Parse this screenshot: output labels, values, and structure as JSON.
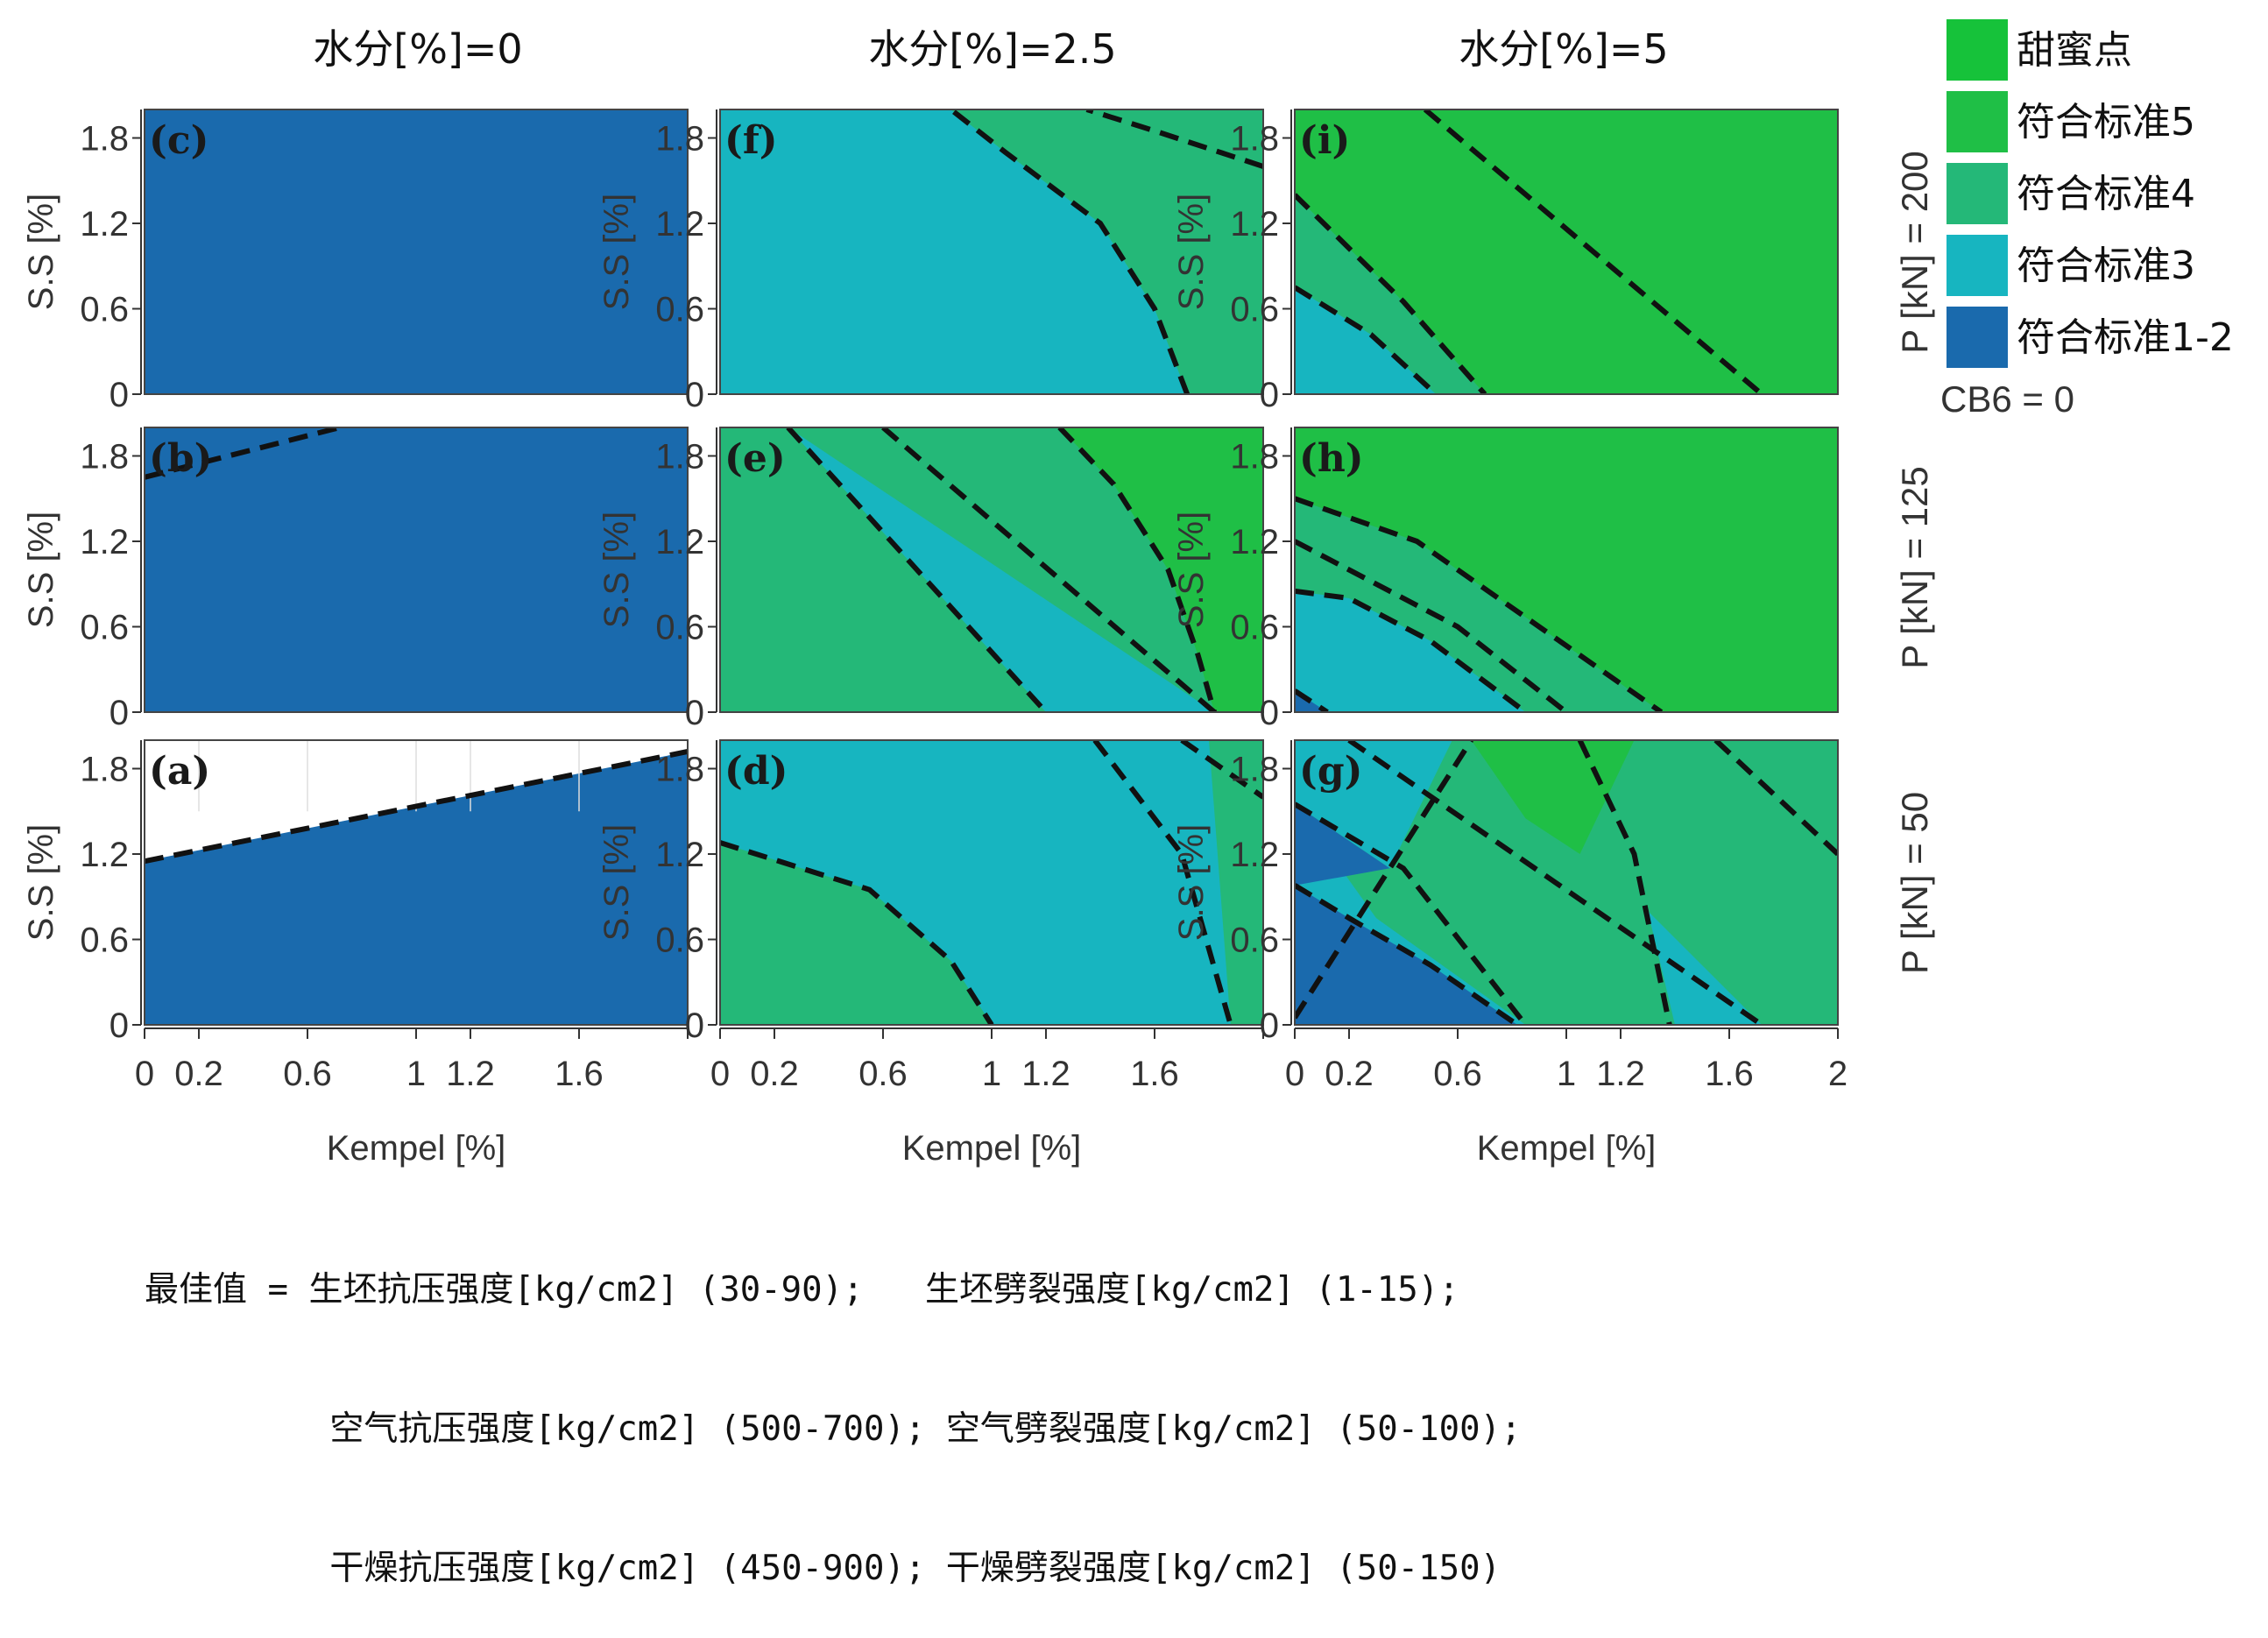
{
  "chart_data": {
    "type": "heatmap",
    "column_headers": [
      "水分[%]=0",
      "水分[%]=2.5",
      "水分[%]=5"
    ],
    "row_headers": [
      "P [kN] = 200",
      "P [kN] = 125",
      "P [kN] = 50"
    ],
    "xlabel": "Kempel [%]",
    "ylabel": "S.S [%]",
    "xlim": [
      0,
      2
    ],
    "ylim": [
      0,
      2
    ],
    "x_ticks": [
      "0",
      "0.2",
      "0.6",
      "1",
      "1.2",
      "1.6",
      "2"
    ],
    "x_tick_values": [
      0,
      0.2,
      0.6,
      1,
      1.2,
      1.6,
      2
    ],
    "y_ticks": [
      "0",
      "0.6",
      "1.2",
      "1.8"
    ],
    "y_tick_values": [
      0,
      0.6,
      1.2,
      1.8
    ],
    "legend": {
      "placement": "right",
      "items": [
        {
          "label": "甜蜜点",
          "color": "#16c23a"
        },
        {
          "label": "符合标准5",
          "color": "#1fbf46"
        },
        {
          "label": "符合标准4",
          "color": "#24b878"
        },
        {
          "label": "符合标准3",
          "color": "#17b5c0"
        },
        {
          "label": "符合标准1-2",
          "color": "#1a6aad"
        }
      ],
      "note": "CB6 = 0"
    },
    "contour_style": "black dashed boundaries",
    "panels": [
      {
        "label": "(c)",
        "row": 0,
        "col": 0,
        "x_ticks_shown": [
          "0",
          "0.2",
          "0.6",
          "1",
          "1.2",
          "1.6"
        ],
        "background": "#1a6aad",
        "regions": [],
        "boundaries": []
      },
      {
        "label": "(f)",
        "row": 0,
        "col": 1,
        "x_ticks_shown": [
          "0",
          "0.2",
          "0.6",
          "1",
          "1.2",
          "1.6"
        ],
        "background": "#24b878",
        "regions": [
          {
            "color": "#17b5c0",
            "points": [
              [
                0,
                0
              ],
              [
                1.72,
                0
              ],
              [
                1.6,
                0.6
              ],
              [
                1.4,
                1.2
              ],
              [
                1.05,
                1.7
              ],
              [
                0.85,
                2
              ],
              [
                0,
                2
              ]
            ]
          }
        ],
        "boundaries": [
          [
            [
              1.72,
              0
            ],
            [
              1.6,
              0.6
            ],
            [
              1.4,
              1.2
            ],
            [
              1.05,
              1.7
            ],
            [
              0.85,
              2
            ]
          ],
          [
            [
              2,
              1.6
            ],
            [
              1.6,
              1.85
            ],
            [
              1.35,
              2
            ]
          ]
        ]
      },
      {
        "label": "(i)",
        "row": 0,
        "col": 2,
        "x_ticks_shown": [
          "0",
          "0.2",
          "0.6",
          "1",
          "1.2",
          "1.6",
          "2"
        ],
        "background": "#1fbf46",
        "regions": [
          {
            "color": "#24b878",
            "points": [
              [
                0,
                0
              ],
              [
                0.7,
                0
              ],
              [
                0.4,
                0.65
              ],
              [
                0,
                1.4
              ]
            ]
          },
          {
            "color": "#17b5c0",
            "points": [
              [
                0,
                0
              ],
              [
                0.52,
                0
              ],
              [
                0.28,
                0.42
              ],
              [
                0,
                0.75
              ]
            ]
          }
        ],
        "boundaries": [
          [
            [
              0.48,
              2
            ],
            [
              1.72,
              0
            ]
          ],
          [
            [
              0,
              1.4
            ],
            [
              0.4,
              0.65
            ],
            [
              0.7,
              0
            ]
          ],
          [
            [
              0,
              0.75
            ],
            [
              0.28,
              0.42
            ],
            [
              0.52,
              0
            ]
          ]
        ]
      },
      {
        "label": "(b)",
        "row": 1,
        "col": 0,
        "x_ticks_shown": [
          "0",
          "0.2",
          "0.6",
          "1",
          "1.2",
          "1.6"
        ],
        "background": "#1a6aad",
        "regions": [],
        "boundaries": [
          [
            [
              0,
              1.65
            ],
            [
              0.72,
              2
            ]
          ]
        ]
      },
      {
        "label": "(e)",
        "row": 1,
        "col": 1,
        "x_ticks_shown": [
          "0",
          "0.2",
          "0.6",
          "1",
          "1.2",
          "1.6"
        ],
        "background": "#1fbf46",
        "regions": [
          {
            "color": "#24b878",
            "points": [
              [
                0,
                0
              ],
              [
                1.82,
                0
              ],
              [
                1.76,
                0.4
              ],
              [
                1.65,
                1
              ],
              [
                1.45,
                1.6
              ],
              [
                1.25,
                2
              ],
              [
                0,
                2
              ]
            ]
          },
          {
            "color": "#17b5c0",
            "points": [
              [
                0.25,
                2
              ],
              [
                1.82,
                0
              ],
              [
                1.2,
                0
              ]
            ]
          }
        ],
        "boundaries": [
          [
            [
              0.25,
              2
            ],
            [
              1.2,
              0
            ]
          ],
          [
            [
              0.6,
              2
            ],
            [
              1.82,
              0
            ]
          ],
          [
            [
              1.25,
              2
            ],
            [
              1.45,
              1.6
            ],
            [
              1.65,
              1
            ],
            [
              1.76,
              0.4
            ],
            [
              1.82,
              0
            ]
          ]
        ]
      },
      {
        "label": "(h)",
        "row": 1,
        "col": 2,
        "x_ticks_shown": [
          "0",
          "0.2",
          "0.6",
          "1",
          "1.2",
          "1.6",
          "2"
        ],
        "background": "#1fbf46",
        "regions": [
          {
            "color": "#24b878",
            "points": [
              [
                0,
                0
              ],
              [
                1.35,
                0
              ],
              [
                0.9,
                0.6
              ],
              [
                0.45,
                1.2
              ],
              [
                0,
                1.5
              ]
            ]
          },
          {
            "color": "#17b5c0",
            "points": [
              [
                0,
                0
              ],
              [
                0.85,
                0
              ],
              [
                0.5,
                0.5
              ],
              [
                0.2,
                0.8
              ],
              [
                0,
                0.85
              ]
            ]
          },
          {
            "color": "#1a6aad",
            "points": [
              [
                0,
                0
              ],
              [
                0.12,
                0
              ],
              [
                0,
                0.15
              ]
            ]
          }
        ],
        "boundaries": [
          [
            [
              0,
              1.5
            ],
            [
              0.45,
              1.2
            ],
            [
              0.9,
              0.6
            ],
            [
              1.35,
              0
            ]
          ],
          [
            [
              0,
              1.2
            ],
            [
              0.6,
              0.6
            ],
            [
              1.0,
              0
            ]
          ],
          [
            [
              0,
              0.85
            ],
            [
              0.2,
              0.8
            ],
            [
              0.5,
              0.5
            ],
            [
              0.85,
              0
            ]
          ],
          [
            [
              0,
              0.15
            ],
            [
              0.12,
              0
            ]
          ]
        ]
      },
      {
        "label": "(a)",
        "row": 2,
        "col": 0,
        "x_ticks_shown": [
          "0",
          "0.2",
          "0.6",
          "1",
          "1.2",
          "1.6"
        ],
        "background": "#1a6aad",
        "regions": [
          {
            "color": "#ffffff",
            "points": [
              [
                0,
                1.15
              ],
              [
                2,
                1.92
              ],
              [
                2,
                2
              ],
              [
                0,
                2
              ]
            ]
          }
        ],
        "boundaries": [
          [
            [
              0,
              1.15
            ],
            [
              2,
              1.92
            ]
          ]
        ]
      },
      {
        "label": "(d)",
        "row": 2,
        "col": 1,
        "x_ticks_shown": [
          "0",
          "0.2",
          "0.6",
          "1",
          "1.2",
          "1.6"
        ],
        "background": "#24b878",
        "regions": [
          {
            "color": "#17b5c0",
            "points": [
              [
                1,
                0
              ],
              [
                0.85,
                0.45
              ],
              [
                0.55,
                0.95
              ],
              [
                0,
                1.28
              ],
              [
                0,
                2
              ],
              [
                1.8,
                2
              ],
              [
                1.88,
                0
              ]
            ]
          }
        ],
        "boundaries": [
          [
            [
              0,
              1.28
            ],
            [
              0.55,
              0.95
            ],
            [
              0.85,
              0.45
            ],
            [
              1,
              0
            ]
          ],
          [
            [
              1.38,
              2
            ],
            [
              1.7,
              1.2
            ],
            [
              1.88,
              0
            ]
          ],
          [
            [
              1.7,
              2
            ],
            [
              2,
              1.6
            ]
          ]
        ]
      },
      {
        "label": "(g)",
        "row": 2,
        "col": 2,
        "x_ticks_shown": [
          "0",
          "0.2",
          "0.6",
          "1",
          "1.2",
          "1.6",
          "2"
        ],
        "background": "#24b878",
        "regions": [
          {
            "color": "#17b5c0",
            "points": [
              [
                0,
                2
              ],
              [
                0.58,
                2
              ],
              [
                0.35,
                1.1
              ],
              [
                0,
                1.55
              ]
            ]
          },
          {
            "color": "#17b5c0",
            "points": [
              [
                0,
                0
              ],
              [
                0.85,
                0
              ],
              [
                0.3,
                0.75
              ],
              [
                0,
                1.55
              ]
            ]
          },
          {
            "color": "#17b5c0",
            "points": [
              [
                1.3,
                0.8
              ],
              [
                1.72,
                0
              ],
              [
                1.4,
                0
              ]
            ]
          },
          {
            "color": "#1a6aad",
            "points": [
              [
                0,
                0
              ],
              [
                0.82,
                0
              ],
              [
                0.5,
                0.42
              ],
              [
                0.2,
                0.75
              ],
              [
                0,
                0.98
              ]
            ]
          },
          {
            "color": "#1a6aad",
            "points": [
              [
                0,
                1.55
              ],
              [
                0.35,
                1.1
              ],
              [
                0,
                0.98
              ]
            ]
          },
          {
            "color": "#1fbf46",
            "points": [
              [
                0.65,
                2
              ],
              [
                1.25,
                2
              ],
              [
                1.05,
                1.2
              ],
              [
                0.85,
                1.45
              ]
            ]
          }
        ],
        "boundaries": [
          [
            [
              0,
              0.05
            ],
            [
              0.65,
              2
            ]
          ],
          [
            [
              0,
              1.55
            ],
            [
              0.4,
              1.1
            ],
            [
              0.85,
              0
            ]
          ],
          [
            [
              0,
              0.98
            ],
            [
              0.2,
              0.75
            ],
            [
              0.5,
              0.42
            ],
            [
              0.82,
              0
            ]
          ],
          [
            [
              0.2,
              2
            ],
            [
              1.72,
              0
            ]
          ],
          [
            [
              1.05,
              2
            ],
            [
              1.25,
              1.2
            ],
            [
              1.38,
              0
            ]
          ],
          [
            [
              1.55,
              2
            ],
            [
              2,
              1.2
            ]
          ]
        ]
      }
    ]
  },
  "notes": [
    "最佳值 = 生坯抗压强度[kg/cm2] (30-90);   生坯劈裂强度[kg/cm2] (1-15);",
    "         空气抗压强度[kg/cm2] (500-700); 空气劈裂强度[kg/cm2] (50-100);",
    "         干燥抗压强度[kg/cm2] (450-900); 干燥劈裂强度[kg/cm2] (50-150)"
  ]
}
